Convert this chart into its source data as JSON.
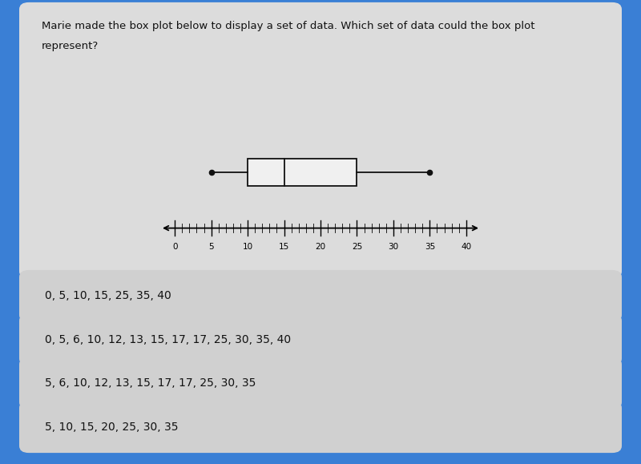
{
  "title_text_line1": "Marie made the box plot below to display a set of data. Which set of data could the box plot",
  "title_text_line2": "represent?",
  "bg_color_outer": "#3a7fd5",
  "bg_color_card": "#dcdcdc",
  "bg_color_choice": "#d0d0d0",
  "boxplot": {
    "min": 5,
    "q1": 10,
    "median": 15,
    "q3": 25,
    "max": 35
  },
  "axis_ticks": [
    0,
    5,
    10,
    15,
    20,
    25,
    30,
    35,
    40
  ],
  "choices": [
    "0, 5, 10, 15, 25, 35, 40",
    "0, 5, 6, 10, 12, 13, 15, 17, 17, 25, 30, 35, 40",
    "5, 6, 10, 12, 13, 15, 17, 17, 25, 30, 35",
    "5, 10, 15, 20, 25, 30, 35"
  ],
  "text_color": "#111111",
  "box_face": "#f0f0f0",
  "box_edge": "#111111",
  "line_color": "#111111"
}
